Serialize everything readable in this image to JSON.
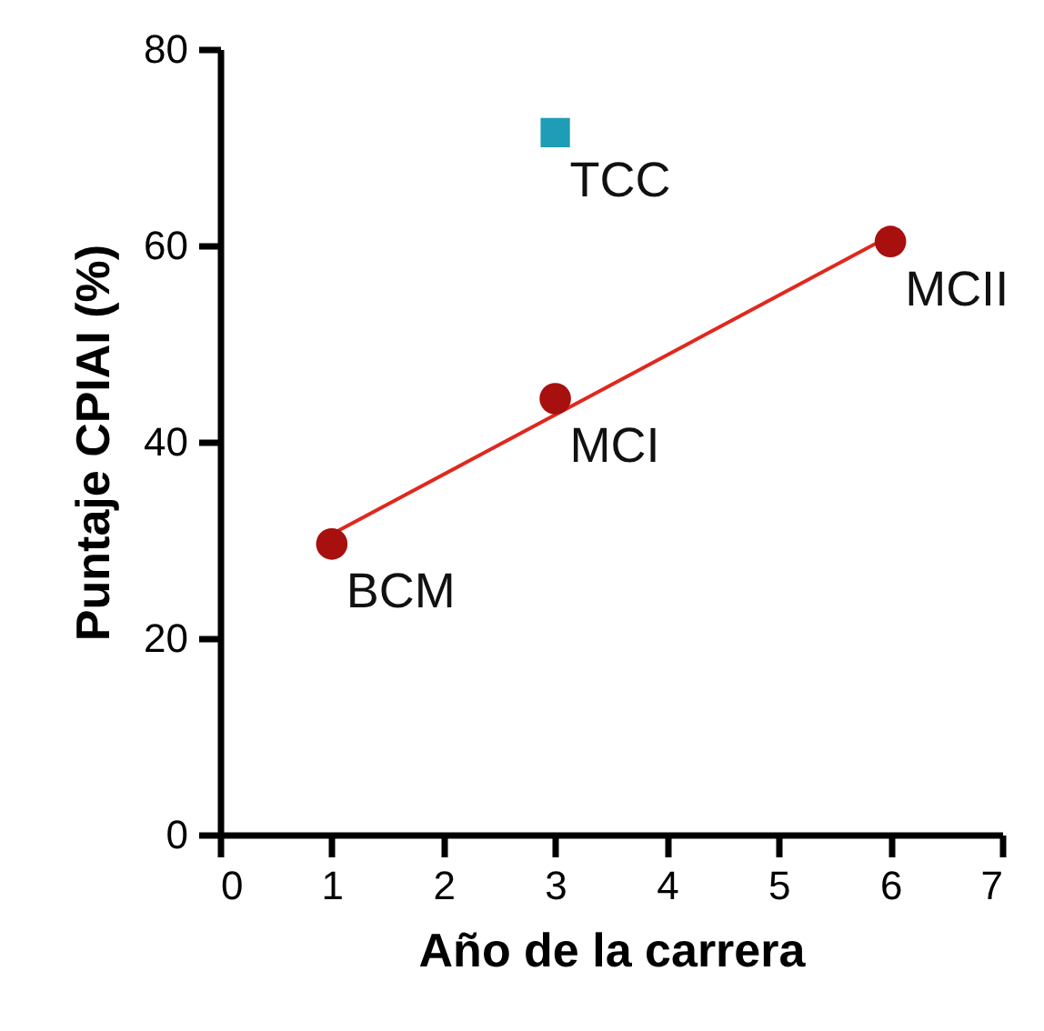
{
  "chart_data": {
    "type": "scatter",
    "xlabel": "Año de la carrera",
    "ylabel": "Puntaje CPIAI (%)",
    "xlim": [
      0,
      7
    ],
    "xticks": [
      0,
      1,
      2,
      3,
      4,
      5,
      6,
      7
    ],
    "ylim": [
      0,
      80
    ],
    "yticks": [
      0,
      20,
      40,
      60,
      80
    ],
    "grid": false,
    "series": [
      {
        "marker": "circle",
        "color": "#a80f0f",
        "x": [
          1,
          3,
          6
        ],
        "values": [
          29.6,
          44.4,
          60.4
        ]
      },
      {
        "marker": "square",
        "color": "#1f9cb6",
        "x": [
          3
        ],
        "values": [
          71.5
        ]
      },
      {
        "type": "line",
        "color": "#e0281e",
        "x": [
          1,
          6
        ],
        "values": [
          30.6,
          61.0
        ]
      }
    ],
    "annotations": [
      {
        "text": "BCM",
        "x": 1,
        "y": 29.6
      },
      {
        "text": "MCI",
        "x": 3,
        "y": 44.4
      },
      {
        "text": "MCII",
        "x": 6,
        "y": 60.4
      },
      {
        "text": "TCC",
        "x": 3,
        "y": 71.5
      }
    ]
  }
}
